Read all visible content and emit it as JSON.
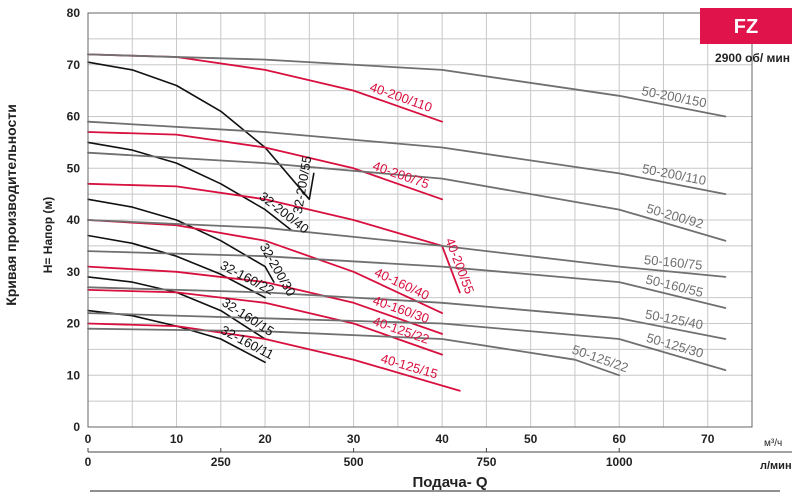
{
  "badge": {
    "text": "FZ",
    "color": "#e0134a"
  },
  "speed": "2900 об/ мин",
  "colors": {
    "black": "#111111",
    "red": "#d8103f",
    "gray": "#707070",
    "grid": "#c8c8c8"
  },
  "chart_data": {
    "type": "line",
    "title": "",
    "left_label": "Кривая производительности",
    "ylabel": "H= Напор (м)",
    "xlabel": "Подача- Q",
    "x_unit_top": "м³/ч",
    "x_unit_bottom": "л/мин",
    "xlim": [
      0,
      75
    ],
    "ylim": [
      0,
      80
    ],
    "x_ticks": [
      "0",
      "10",
      "20",
      "30",
      "40",
      "50",
      "60",
      "70"
    ],
    "x_ticks_lmin": [
      "0",
      "250",
      "500",
      "750",
      "1000"
    ],
    "y_ticks": [
      "0",
      "10",
      "20",
      "30",
      "40",
      "50",
      "60",
      "70",
      "80"
    ],
    "grid": true,
    "series": [
      {
        "name": "32-200/55",
        "color": "black",
        "points": [
          [
            0,
            70.5
          ],
          [
            5,
            69
          ],
          [
            10,
            66
          ],
          [
            15,
            61
          ],
          [
            20,
            54
          ],
          [
            25,
            44
          ],
          [
            25.5,
            49
          ]
        ]
      },
      {
        "name": "32-200/40",
        "color": "black",
        "points": [
          [
            0,
            55
          ],
          [
            5,
            53.5
          ],
          [
            10,
            51
          ],
          [
            15,
            47
          ],
          [
            20,
            42
          ],
          [
            23,
            38
          ]
        ]
      },
      {
        "name": "32-200/30",
        "color": "black",
        "points": [
          [
            0,
            44
          ],
          [
            5,
            42.5
          ],
          [
            10,
            40
          ],
          [
            15,
            36
          ],
          [
            20,
            31
          ],
          [
            21,
            28
          ]
        ]
      },
      {
        "name": "32-160/22",
        "color": "black",
        "points": [
          [
            0,
            37
          ],
          [
            5,
            35.5
          ],
          [
            10,
            33
          ],
          [
            15,
            29.5
          ],
          [
            20,
            25
          ]
        ]
      },
      {
        "name": "32-160/15",
        "color": "black",
        "points": [
          [
            0,
            29
          ],
          [
            5,
            28
          ],
          [
            10,
            26
          ],
          [
            15,
            22.5
          ],
          [
            20,
            17
          ]
        ]
      },
      {
        "name": "32-160/11",
        "color": "black",
        "points": [
          [
            0,
            22.5
          ],
          [
            5,
            21.5
          ],
          [
            10,
            19.5
          ],
          [
            15,
            17
          ],
          [
            20,
            12.5
          ]
        ]
      },
      {
        "name": "40-200/110",
        "color": "red",
        "points": [
          [
            0,
            72
          ],
          [
            10,
            71.5
          ],
          [
            20,
            69
          ],
          [
            30,
            65
          ],
          [
            40,
            59
          ]
        ]
      },
      {
        "name": "40-200/75",
        "color": "red",
        "points": [
          [
            0,
            57
          ],
          [
            10,
            56.5
          ],
          [
            20,
            54
          ],
          [
            30,
            50
          ],
          [
            40,
            44
          ]
        ]
      },
      {
        "name": "40-200/55",
        "color": "red",
        "points": [
          [
            0,
            47
          ],
          [
            10,
            46.5
          ],
          [
            20,
            44
          ],
          [
            30,
            40
          ],
          [
            40,
            35
          ],
          [
            42,
            26
          ]
        ]
      },
      {
        "name": "40-160/40",
        "color": "red",
        "points": [
          [
            0,
            40
          ],
          [
            10,
            39
          ],
          [
            20,
            36
          ],
          [
            30,
            30
          ],
          [
            40,
            22
          ]
        ]
      },
      {
        "name": "40-160/30",
        "color": "red",
        "points": [
          [
            0,
            31
          ],
          [
            10,
            30
          ],
          [
            20,
            28
          ],
          [
            30,
            24
          ],
          [
            40,
            18
          ]
        ]
      },
      {
        "name": "40-125/22",
        "color": "red",
        "points": [
          [
            0,
            26.5
          ],
          [
            10,
            26
          ],
          [
            20,
            24
          ],
          [
            30,
            20
          ],
          [
            40,
            14
          ]
        ]
      },
      {
        "name": "40-125/15",
        "color": "red",
        "points": [
          [
            0,
            20
          ],
          [
            10,
            19.5
          ],
          [
            20,
            17
          ],
          [
            30,
            13
          ],
          [
            42,
            7
          ]
        ]
      },
      {
        "name": "50-200/150",
        "color": "gray",
        "points": [
          [
            0,
            72
          ],
          [
            20,
            71
          ],
          [
            40,
            69
          ],
          [
            60,
            64
          ],
          [
            72,
            60
          ]
        ]
      },
      {
        "name": "50-200/110",
        "color": "gray",
        "points": [
          [
            0,
            59
          ],
          [
            20,
            57
          ],
          [
            40,
            54
          ],
          [
            60,
            49
          ],
          [
            72,
            45
          ]
        ]
      },
      {
        "name": "50-200/92",
        "color": "gray",
        "points": [
          [
            0,
            53
          ],
          [
            20,
            51
          ],
          [
            40,
            48
          ],
          [
            60,
            42
          ],
          [
            72,
            36
          ]
        ]
      },
      {
        "name": "50-160/75",
        "color": "gray",
        "points": [
          [
            0,
            40
          ],
          [
            20,
            38.5
          ],
          [
            40,
            35
          ],
          [
            60,
            31
          ],
          [
            72,
            29
          ]
        ]
      },
      {
        "name": "50-160/55",
        "color": "gray",
        "points": [
          [
            0,
            34
          ],
          [
            20,
            33
          ],
          [
            40,
            31
          ],
          [
            60,
            28
          ],
          [
            72,
            23
          ]
        ]
      },
      {
        "name": "50-125/40",
        "color": "gray",
        "points": [
          [
            0,
            27
          ],
          [
            20,
            26
          ],
          [
            40,
            24
          ],
          [
            60,
            21
          ],
          [
            72,
            17
          ]
        ]
      },
      {
        "name": "50-125/30",
        "color": "gray",
        "points": [
          [
            0,
            22
          ],
          [
            20,
            21
          ],
          [
            40,
            20
          ],
          [
            60,
            17
          ],
          [
            72,
            11
          ]
        ]
      },
      {
        "name": "50-125/22",
        "color": "gray",
        "points": [
          [
            0,
            19
          ],
          [
            20,
            18.5
          ],
          [
            40,
            17
          ],
          [
            55,
            13
          ],
          [
            60,
            10
          ]
        ]
      }
    ]
  }
}
